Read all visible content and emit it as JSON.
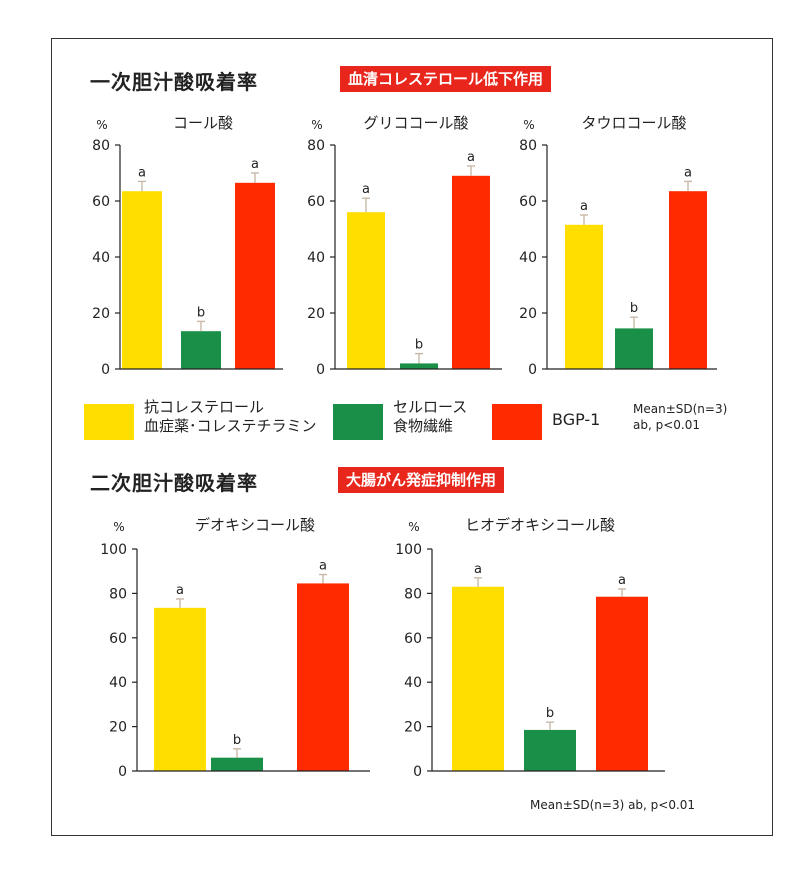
{
  "sections": {
    "primary": {
      "title": "一次胆汁酸吸着率",
      "badge": "血清コレステロール低下作用"
    },
    "secondary": {
      "title": "二次胆汁酸吸着率",
      "badge": "大腸がん発症抑制作用"
    }
  },
  "legend": {
    "items": [
      {
        "name": "抗コレステロール血症薬・コレステチラミン",
        "line1": "抗コレステロール",
        "line2": "血症薬･コレステチラミン",
        "color": "#ffde00"
      },
      {
        "name": "セルロース食物繊維",
        "line1": "セルロース",
        "line2": "食物繊維",
        "color": "#1a8f47"
      },
      {
        "name": "BGP-1",
        "line1": "BGP-1",
        "line2": "",
        "color": "#ff2a00"
      }
    ],
    "stats_line1": "Mean±SD(n=3)",
    "stats_line2": "ab, p<0.01"
  },
  "footnote": "Mean±SD(n=3)  ab, p<0.01",
  "colors": {
    "yellow": "#ffde00",
    "green": "#1a8f47",
    "red": "#ff2a00",
    "badge": "#e8261c"
  },
  "chart_data": [
    {
      "type": "bar",
      "title": "コール酸",
      "ylabel": "%",
      "ylim": [
        0,
        80
      ],
      "yticks": [
        0,
        20,
        40,
        60,
        80
      ],
      "categories": [
        "抗コレステロール血症薬・コレステチラミン",
        "セルロース食物繊維",
        "BGP-1"
      ],
      "values": [
        63.5,
        13.5,
        66.5
      ],
      "errors": [
        3.5,
        3.5,
        3.5
      ],
      "labels": [
        "a",
        "b",
        "a"
      ]
    },
    {
      "type": "bar",
      "title": "グリココール酸",
      "ylabel": "%",
      "ylim": [
        0,
        80
      ],
      "yticks": [
        0,
        20,
        40,
        60,
        80
      ],
      "categories": [
        "抗コレステロール血症薬・コレステチラミン",
        "セルロース食物繊維",
        "BGP-1"
      ],
      "values": [
        56,
        2,
        69
      ],
      "errors": [
        5,
        3.5,
        3.5
      ],
      "labels": [
        "a",
        "b",
        "a"
      ]
    },
    {
      "type": "bar",
      "title": "タウロコール酸",
      "ylabel": "%",
      "ylim": [
        0,
        80
      ],
      "yticks": [
        0,
        20,
        40,
        60,
        80
      ],
      "categories": [
        "抗コレステロール血症薬・コレステチラミン",
        "セルロース食物繊維",
        "BGP-1"
      ],
      "values": [
        51.5,
        14.5,
        63.5
      ],
      "errors": [
        3.5,
        4,
        3.5
      ],
      "labels": [
        "a",
        "b",
        "a"
      ]
    },
    {
      "type": "bar",
      "title": "デオキシコール酸",
      "ylabel": "%",
      "ylim": [
        0,
        100
      ],
      "yticks": [
        0,
        20,
        40,
        60,
        80,
        100
      ],
      "categories": [
        "抗コレステロール血症薬・コレステチラミン",
        "セルロース食物繊維",
        "BGP-1"
      ],
      "values": [
        73.5,
        6,
        84.5
      ],
      "errors": [
        4,
        4,
        4
      ],
      "labels": [
        "a",
        "b",
        "a"
      ]
    },
    {
      "type": "bar",
      "title": "ヒオデオキシコール酸",
      "ylabel": "%",
      "ylim": [
        0,
        100
      ],
      "yticks": [
        0,
        20,
        40,
        60,
        80,
        100
      ],
      "categories": [
        "抗コレステロール血症薬・コレステチラミン",
        "セルロース食物繊維",
        "BGP-1"
      ],
      "values": [
        83,
        18.5,
        78.5
      ],
      "errors": [
        4,
        3.5,
        3.5
      ],
      "labels": [
        "a",
        "b",
        "a"
      ]
    }
  ]
}
